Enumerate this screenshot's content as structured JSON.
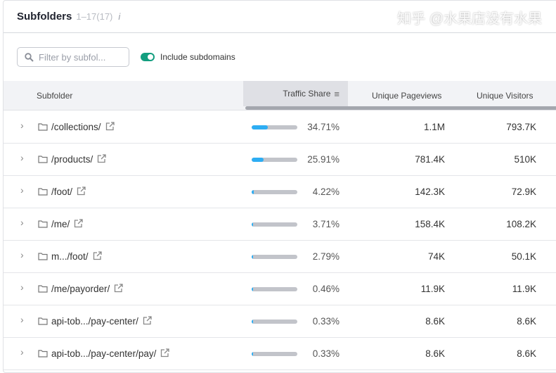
{
  "header": {
    "title": "Subfolders",
    "count": "1–17(17)",
    "info_icon": "i"
  },
  "filters": {
    "search_placeholder": "Filter by subfol...",
    "toggle_label": "Include subdomains",
    "toggle_on": true
  },
  "columns": [
    "Subfolder",
    "Traffic Share",
    "Unique Pageviews",
    "Unique Visitors"
  ],
  "rows": [
    {
      "name": "/collections/",
      "share": "34.71%",
      "share_value": 34.71,
      "pageviews": "1.1M",
      "visitors": "793.7K"
    },
    {
      "name": "/products/",
      "share": "25.91%",
      "share_value": 25.91,
      "pageviews": "781.4K",
      "visitors": "510K"
    },
    {
      "name": "/foot/",
      "share": "4.22%",
      "share_value": 4.22,
      "pageviews": "142.3K",
      "visitors": "72.9K"
    },
    {
      "name": "/me/",
      "share": "3.71%",
      "share_value": 3.71,
      "pageviews": "158.4K",
      "visitors": "108.2K"
    },
    {
      "name": "m.../foot/",
      "share": "2.79%",
      "share_value": 2.79,
      "pageviews": "74K",
      "visitors": "50.1K"
    },
    {
      "name": "/me/payorder/",
      "share": "0.46%",
      "share_value": 0.46,
      "pageviews": "11.9K",
      "visitors": "11.9K"
    },
    {
      "name": "api-tob.../pay-center/",
      "share": "0.33%",
      "share_value": 0.33,
      "pageviews": "8.6K",
      "visitors": "8.6K"
    },
    {
      "name": "api-tob.../pay-center/pay/",
      "share": "0.33%",
      "share_value": 0.33,
      "pageviews": "8.6K",
      "visitors": "8.6K"
    }
  ],
  "watermark": "知乎 @水果店没有水果",
  "colors": {
    "accent": "#2dadf3",
    "toggle": "#139e7f"
  }
}
